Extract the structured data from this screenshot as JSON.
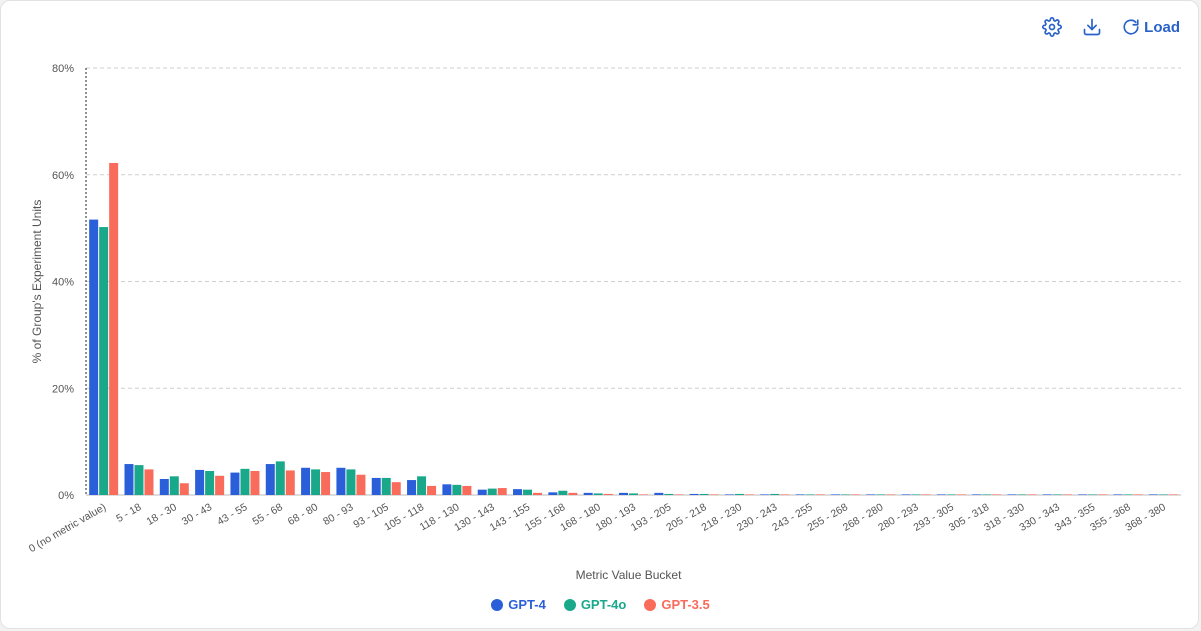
{
  "toolbar": {
    "settings_icon": "gear-icon",
    "download_icon": "download-icon",
    "load_icon": "refresh-icon",
    "load_label": "Load"
  },
  "colors": {
    "accent": "#2962c9",
    "gpt4": "#2b5fd9",
    "gpt4o": "#1aa88b",
    "gpt35": "#f96b5b"
  },
  "chart_data": {
    "type": "bar",
    "xlabel": "Metric Value Bucket",
    "ylabel": "% of Group's Experiment Units",
    "ylim": [
      0,
      80
    ],
    "yticks": [
      0,
      20,
      40,
      60,
      80
    ],
    "ytick_labels": [
      "0%",
      "20%",
      "40%",
      "60%",
      "80%"
    ],
    "grid": true,
    "legend_position": "bottom-center",
    "categories": [
      "0 (no metric value)",
      "5 - 18",
      "18 - 30",
      "30 - 43",
      "43 - 55",
      "55 - 68",
      "68 - 80",
      "80 - 93",
      "93 - 105",
      "105 - 118",
      "118 - 130",
      "130 - 143",
      "143 - 155",
      "155 - 168",
      "168 - 180",
      "180 - 193",
      "193 - 205",
      "205 - 218",
      "218 - 230",
      "230 - 243",
      "243 - 255",
      "255 - 268",
      "268 - 280",
      "280 - 293",
      "293 - 305",
      "305 - 318",
      "318 - 330",
      "330 - 343",
      "343 - 355",
      "355 - 368",
      "368 - 380"
    ],
    "series": [
      {
        "name": "GPT-4",
        "color": "#2b5fd9",
        "values": [
          51.6,
          5.8,
          3.0,
          4.7,
          4.2,
          5.8,
          5.1,
          5.1,
          3.2,
          2.8,
          2.0,
          1.0,
          1.1,
          0.5,
          0.4,
          0.4,
          0.4,
          0.2,
          0.1,
          0.1,
          0.1,
          0.05,
          0.05,
          0.05,
          0.05,
          0.05,
          0.05,
          0.05,
          0.05,
          0.05,
          0.05
        ]
      },
      {
        "name": "GPT-4o",
        "color": "#1aa88b",
        "values": [
          50.2,
          5.6,
          3.5,
          4.5,
          4.9,
          6.3,
          4.8,
          4.8,
          3.2,
          3.5,
          1.9,
          1.2,
          1.0,
          0.8,
          0.3,
          0.3,
          0.2,
          0.2,
          0.2,
          0.2,
          0.1,
          0.05,
          0.05,
          0.05,
          0.05,
          0.05,
          0.05,
          0.05,
          0.05,
          0.1,
          0.05
        ]
      },
      {
        "name": "GPT-3.5",
        "color": "#f96b5b",
        "values": [
          62.2,
          4.8,
          2.2,
          3.6,
          4.5,
          4.6,
          4.3,
          3.8,
          2.4,
          1.7,
          1.7,
          1.3,
          0.4,
          0.4,
          0.2,
          0.1,
          0.1,
          0.05,
          0.05,
          0.05,
          0.05,
          0.05,
          0.05,
          0.05,
          0.05,
          0.05,
          0.05,
          0.05,
          0.05,
          0.05,
          0.05
        ]
      }
    ]
  }
}
